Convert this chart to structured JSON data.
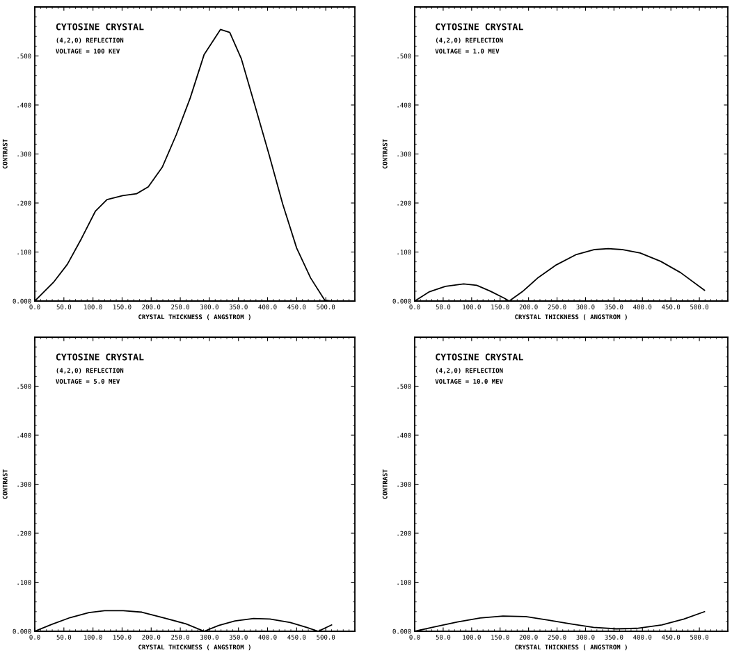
{
  "chart_data": [
    {
      "type": "line",
      "title": "CYTOSINE CRYSTAL",
      "subtitle": "(4,2,0) REFLECTION",
      "annotations": [
        "VOLTAGE = 100 KEV"
      ],
      "xlabel": "CRYSTAL THICKNESS ( ANGSTROM )",
      "ylabel": "CONTRAST",
      "x": [
        0,
        32,
        56,
        80,
        104,
        124,
        151,
        175,
        195,
        219,
        243,
        267,
        291,
        319,
        335,
        355,
        378,
        402,
        426,
        450,
        474,
        498,
        510
      ],
      "series": [
        {
          "color": "#000000",
          "values": [
            0,
            0.038,
            0.075,
            0.127,
            0.183,
            0.207,
            0.215,
            0.219,
            0.233,
            0.273,
            0.339,
            0.414,
            0.503,
            0.554,
            0.548,
            0.494,
            0.4,
            0.301,
            0.198,
            0.108,
            0.047,
            0.002,
            0
          ]
        }
      ],
      "xlim": [
        0,
        550
      ],
      "ylim": [
        0,
        0.6
      ],
      "xticks": [
        {
          "value": 0,
          "label": "0.0"
        },
        {
          "value": 50,
          "label": "50.0"
        },
        {
          "value": 100,
          "label": "100.0"
        },
        {
          "value": 150,
          "label": "150.0"
        },
        {
          "value": 200,
          "label": "200.0"
        },
        {
          "value": 250,
          "label": "250.0"
        },
        {
          "value": 300,
          "label": "300.0"
        },
        {
          "value": 350,
          "label": "350.0"
        },
        {
          "value": 400,
          "label": "400.0"
        },
        {
          "value": 450,
          "label": "450.0"
        },
        {
          "value": 500,
          "label": "500.0"
        }
      ],
      "yticks": [
        {
          "value": 0,
          "label": "0.000"
        },
        {
          "value": 0.1,
          "label": ".100"
        },
        {
          "value": 0.2,
          "label": ".200"
        },
        {
          "value": 0.3,
          "label": ".300"
        },
        {
          "value": 0.4,
          "label": ".400"
        },
        {
          "value": 0.5,
          "label": ".500"
        }
      ],
      "grid": false,
      "legend": false
    },
    {
      "type": "line",
      "title": "CYTOSINE CRYSTAL",
      "subtitle": "(4,2,0) REFLECTION",
      "annotations": [
        "VOLTAGE = 1.0 MEV"
      ],
      "xlabel": "CRYSTAL THICKNESS ( ANGSTROM )",
      "ylabel": "CONTRAST",
      "x": [
        0,
        26,
        54,
        86,
        109,
        133,
        157,
        166,
        189,
        217,
        249,
        284,
        316,
        340,
        364,
        396,
        432,
        467,
        509
      ],
      "series": [
        {
          "color": "#000000",
          "values": [
            0,
            0.019,
            0.03,
            0.035,
            0.032,
            0.02,
            0.006,
            0,
            0.019,
            0.048,
            0.074,
            0.095,
            0.105,
            0.107,
            0.105,
            0.098,
            0.081,
            0.058,
            0.022
          ]
        }
      ],
      "xlim": [
        0,
        550
      ],
      "ylim": [
        0,
        0.6
      ],
      "xticks": [
        {
          "value": 0,
          "label": "0.0"
        },
        {
          "value": 50,
          "label": "50.0"
        },
        {
          "value": 100,
          "label": "100.0"
        },
        {
          "value": 150,
          "label": "150.0"
        },
        {
          "value": 200,
          "label": "200.0"
        },
        {
          "value": 250,
          "label": "250.0"
        },
        {
          "value": 300,
          "label": "300.0"
        },
        {
          "value": 350,
          "label": "350.0"
        },
        {
          "value": 400,
          "label": "400.0"
        },
        {
          "value": 450,
          "label": "450.0"
        },
        {
          "value": 500,
          "label": "500.0"
        }
      ],
      "yticks": [
        {
          "value": 0,
          "label": "0.000"
        },
        {
          "value": 0.1,
          "label": ".100"
        },
        {
          "value": 0.2,
          "label": ".200"
        },
        {
          "value": 0.3,
          "label": ".300"
        },
        {
          "value": 0.4,
          "label": ".400"
        },
        {
          "value": 0.5,
          "label": ".500"
        }
      ],
      "grid": false,
      "legend": false
    },
    {
      "type": "line",
      "title": "CYTOSINE CRYSTAL",
      "subtitle": "(4,2,0) REFLECTION",
      "annotations": [
        "VOLTAGE = 5.0 MEV"
      ],
      "xlabel": "CRYSTAL THICKNESS ( ANGSTROM )",
      "ylabel": "CONTRAST",
      "x": [
        0,
        29,
        61,
        93,
        120,
        152,
        184,
        220,
        260,
        291,
        316,
        344,
        376,
        404,
        439,
        467,
        487,
        510
      ],
      "series": [
        {
          "color": "#000000",
          "values": [
            0,
            0.014,
            0.028,
            0.038,
            0.042,
            0.042,
            0.039,
            0.028,
            0.015,
            0,
            0.012,
            0.021,
            0.026,
            0.025,
            0.018,
            0.008,
            0,
            0.013
          ]
        }
      ],
      "xlim": [
        0,
        550
      ],
      "ylim": [
        0,
        0.6
      ],
      "xticks": [
        {
          "value": 0,
          "label": "0.0"
        },
        {
          "value": 50,
          "label": "50.0"
        },
        {
          "value": 100,
          "label": "100.0"
        },
        {
          "value": 150,
          "label": "150.0"
        },
        {
          "value": 200,
          "label": "200.0"
        },
        {
          "value": 250,
          "label": "250.0"
        },
        {
          "value": 300,
          "label": "300.0"
        },
        {
          "value": 350,
          "label": "350.0"
        },
        {
          "value": 400,
          "label": "400.0"
        },
        {
          "value": 450,
          "label": "450.0"
        },
        {
          "value": 500,
          "label": "500.0"
        }
      ],
      "yticks": [
        {
          "value": 0,
          "label": "0.000"
        },
        {
          "value": 0.1,
          "label": ".100"
        },
        {
          "value": 0.2,
          "label": ".200"
        },
        {
          "value": 0.3,
          "label": ".300"
        },
        {
          "value": 0.4,
          "label": ".400"
        },
        {
          "value": 0.5,
          "label": ".500"
        }
      ],
      "grid": false,
      "legend": false
    },
    {
      "type": "line",
      "title": "CYTOSINE CRYSTAL",
      "subtitle": "(4,2,0) REFLECTION",
      "annotations": [
        "VOLTAGE = 10.0 MEV"
      ],
      "xlabel": "CRYSTAL THICKNESS ( ANGSTROM )",
      "ylabel": "CONTRAST",
      "x": [
        0,
        35,
        75,
        115,
        155,
        195,
        234,
        274,
        314,
        354,
        390,
        434,
        473,
        509
      ],
      "series": [
        {
          "color": "#000000",
          "values": [
            0,
            0.009,
            0.019,
            0.027,
            0.031,
            0.03,
            0.023,
            0.015,
            0.008,
            0.005,
            0.006,
            0.013,
            0.025,
            0.04
          ]
        }
      ],
      "xlim": [
        0,
        550
      ],
      "ylim": [
        0,
        0.6
      ],
      "xticks": [
        {
          "value": 0,
          "label": "0.0"
        },
        {
          "value": 50,
          "label": "50.0"
        },
        {
          "value": 100,
          "label": "100.0"
        },
        {
          "value": 150,
          "label": "150.0"
        },
        {
          "value": 200,
          "label": "200.0"
        },
        {
          "value": 250,
          "label": "250.0"
        },
        {
          "value": 300,
          "label": "300.0"
        },
        {
          "value": 350,
          "label": "350.0"
        },
        {
          "value": 400,
          "label": "400.0"
        },
        {
          "value": 450,
          "label": "450.0"
        },
        {
          "value": 500,
          "label": "500.0"
        }
      ],
      "yticks": [
        {
          "value": 0,
          "label": "0.000"
        },
        {
          "value": 0.1,
          "label": ".100"
        },
        {
          "value": 0.2,
          "label": ".200"
        },
        {
          "value": 0.3,
          "label": ".300"
        },
        {
          "value": 0.4,
          "label": ".400"
        },
        {
          "value": 0.5,
          "label": ".500"
        }
      ],
      "grid": false,
      "legend": false
    }
  ]
}
